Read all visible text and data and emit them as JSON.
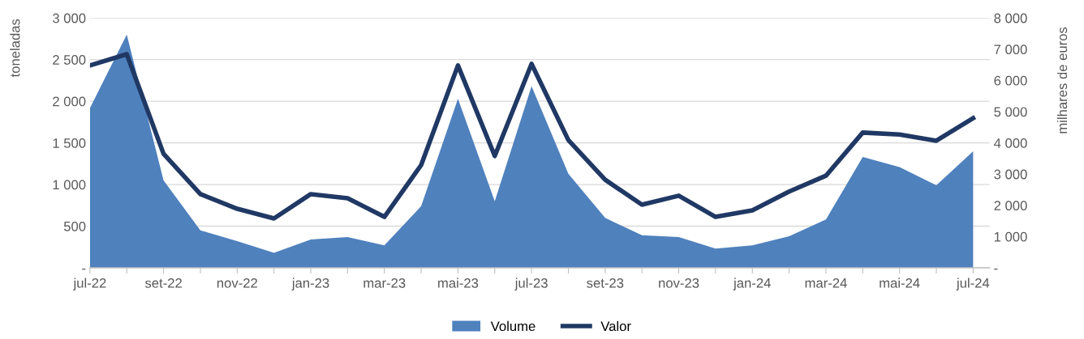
{
  "chart_data": {
    "type": "area",
    "ylabel": "toneladas",
    "y2label": "milhares de euros",
    "categories": [
      "jul-22",
      null,
      "set-22",
      null,
      "nov-22",
      null,
      "jan-23",
      null,
      "mar-23",
      null,
      "mai-23",
      null,
      "jul-23",
      null,
      "set-23",
      null,
      "nov-23",
      null,
      "jan-24",
      null,
      "mar-24",
      null,
      "mai-24",
      null,
      "jul-24"
    ],
    "series": [
      {
        "name": "Volume",
        "color": "#4f81bd",
        "values": [
          1920,
          2800,
          1050,
          450,
          320,
          180,
          340,
          370,
          270,
          740,
          2030,
          800,
          2180,
          1130,
          600,
          390,
          370,
          230,
          270,
          380,
          580,
          1330,
          1210,
          990,
          1400
        ]
      },
      {
        "name": "Valor",
        "type": "line",
        "axis": "y2",
        "color": "#203864",
        "values": [
          6480,
          6840,
          3650,
          2360,
          1890,
          1580,
          2360,
          2230,
          1630,
          3290,
          6480,
          3580,
          6530,
          4090,
          2820,
          2020,
          2310,
          1630,
          1840,
          2440,
          2950,
          4330,
          4270,
          4070,
          4790
        ]
      }
    ],
    "ylim": [
      0,
      3000
    ],
    "yticks": [
      {
        "value": 0,
        "label": "-"
      },
      {
        "value": 500,
        "label": "500"
      },
      {
        "value": 1000,
        "label": "1 000"
      },
      {
        "value": 1500,
        "label": "1 500"
      },
      {
        "value": 2000,
        "label": "2 000"
      },
      {
        "value": 2500,
        "label": "2 500"
      },
      {
        "value": 3000,
        "label": "3 000"
      }
    ],
    "y2lim": [
      0,
      8000
    ],
    "y2ticks": [
      {
        "value": 0,
        "label": "-"
      },
      {
        "value": 1000,
        "label": "1 000"
      },
      {
        "value": 2000,
        "label": "2 000"
      },
      {
        "value": 3000,
        "label": "3 000"
      },
      {
        "value": 4000,
        "label": "4 000"
      },
      {
        "value": 5000,
        "label": "5 000"
      },
      {
        "value": 6000,
        "label": "6 000"
      },
      {
        "value": 7000,
        "label": "7 000"
      },
      {
        "value": 8000,
        "label": "8 000"
      }
    ],
    "grid": "y",
    "legend": "bottom",
    "marker": "none",
    "line_style": "solid"
  }
}
